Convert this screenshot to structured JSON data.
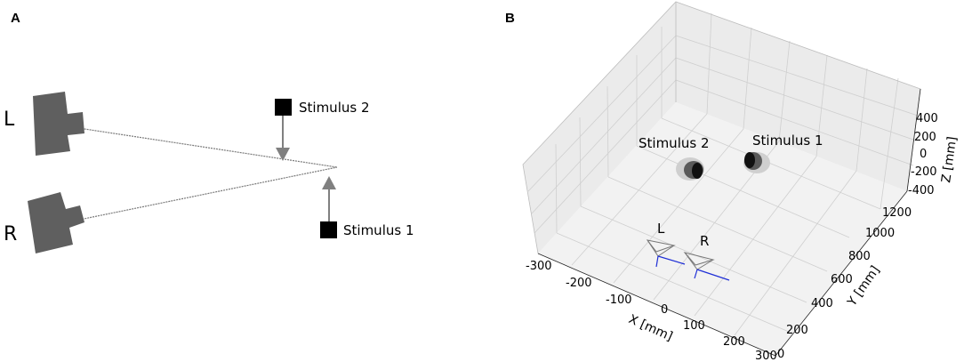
{
  "panel_a": {
    "letter": "A",
    "camera_left_label": "L",
    "camera_right_label": "R",
    "stimulus_2_label": "Stimulus 2",
    "stimulus_1_label": "Stimulus 1",
    "colors": {
      "camera": "#5f5f5f",
      "stimulus": "#000000",
      "arrow": "#808080",
      "ray": "#7a7a7a"
    }
  },
  "panel_b": {
    "letter": "B",
    "stimulus_2_label": "Stimulus 2",
    "stimulus_1_label": "Stimulus 1",
    "camera_left_label": "L",
    "camera_right_label": "R",
    "x_axis": {
      "label": "X [mm]",
      "ticks": [
        "-300",
        "-200",
        "-100",
        "0",
        "100",
        "200",
        "300"
      ]
    },
    "y_axis": {
      "label": "Y [mm]",
      "ticks": [
        "0",
        "200",
        "400",
        "600",
        "800",
        "1000",
        "1200"
      ]
    },
    "z_axis": {
      "label": "Z [mm]",
      "ticks": [
        "-400",
        "-200",
        "0",
        "200",
        "400"
      ]
    },
    "colors": {
      "camera_axis": "#1f2fd6",
      "points": "#000000"
    }
  }
}
